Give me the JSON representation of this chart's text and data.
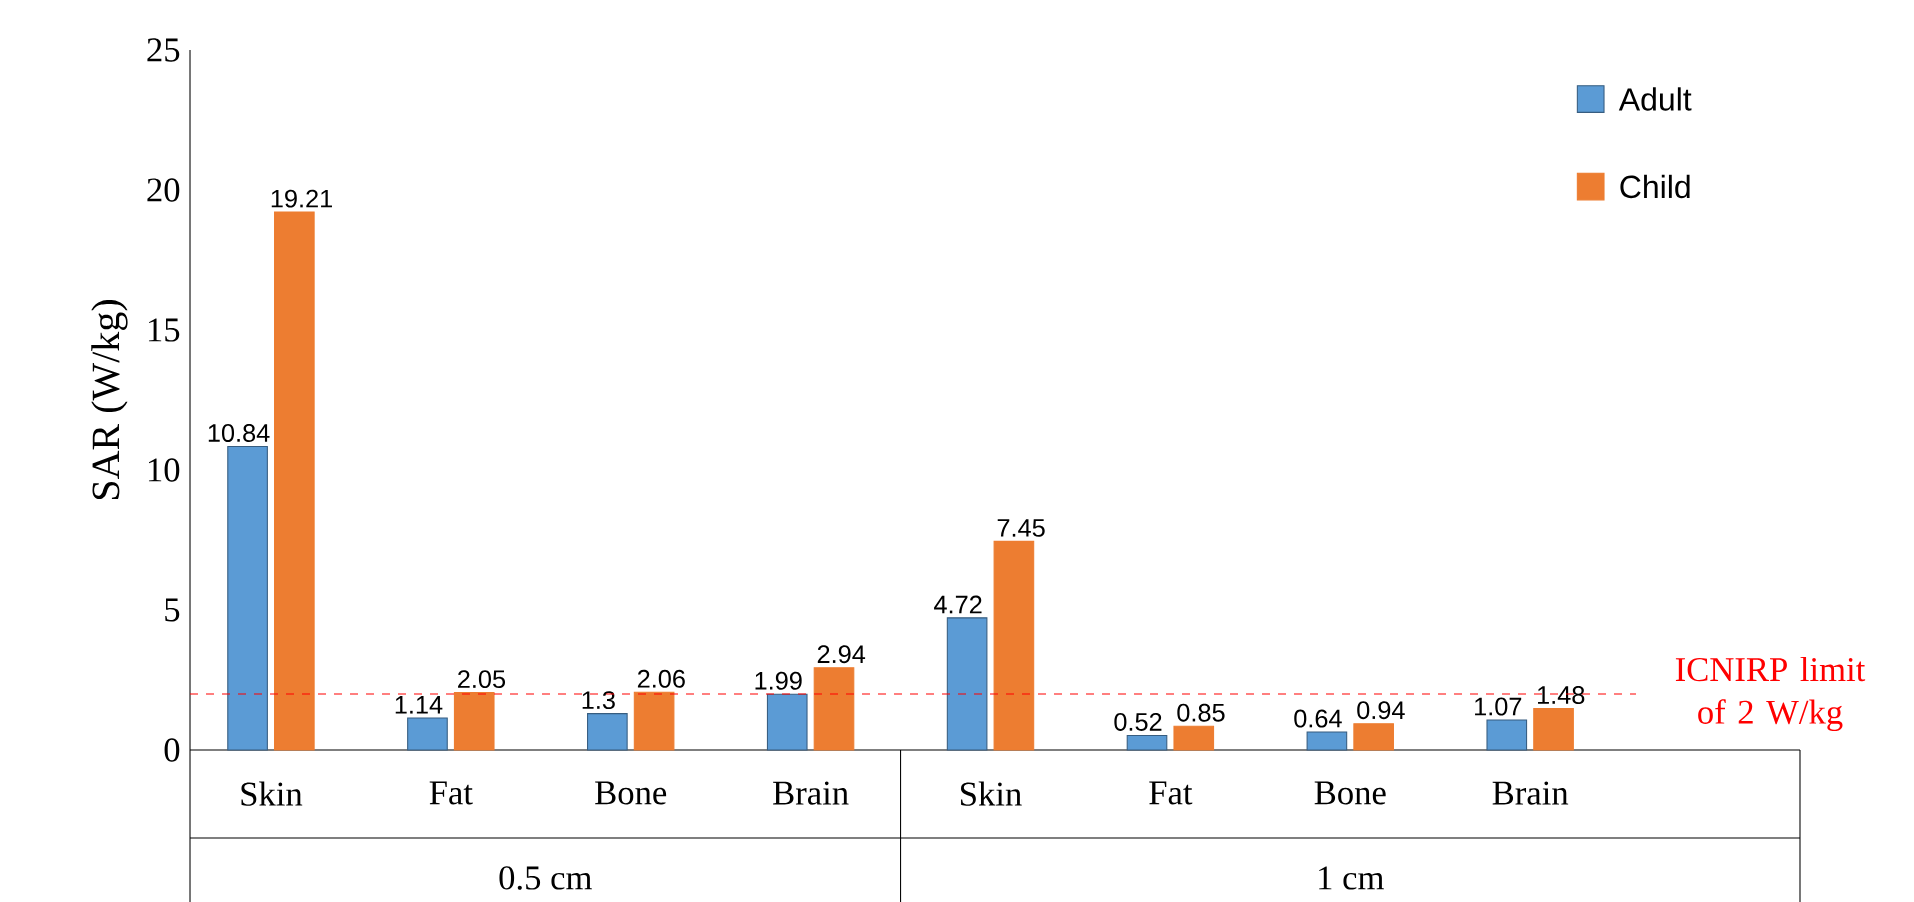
{
  "chart_data": {
    "type": "bar",
    "ylabel": "SAR (W/kg)",
    "categories": [
      "Skin",
      "Fat",
      "Bone",
      "Brain",
      "Skin",
      "Fat",
      "Bone",
      "Brain"
    ],
    "series": [
      {
        "name": "Adult",
        "color": "#5b9bd5",
        "values": [
          10.84,
          1.14,
          1.3,
          1.99,
          4.72,
          0.52,
          0.64,
          1.07
        ]
      },
      {
        "name": "Child",
        "color": "#ed7d31",
        "values": [
          19.21,
          2.05,
          2.06,
          2.94,
          7.45,
          0.85,
          0.94,
          1.48
        ]
      }
    ],
    "ylim": [
      0,
      25
    ],
    "yticks": [
      0,
      5,
      10,
      15,
      20,
      25
    ],
    "ref_lines": [
      {
        "axis": "y",
        "value": 2,
        "label": "ICNIRP limit of 2 W/kg",
        "color": "#ff0000",
        "line_style": "dashed"
      }
    ],
    "annotations": [
      "0.5 cm",
      "1 cm"
    ],
    "data_labels": true,
    "legend": "top right",
    "grid": false
  }
}
